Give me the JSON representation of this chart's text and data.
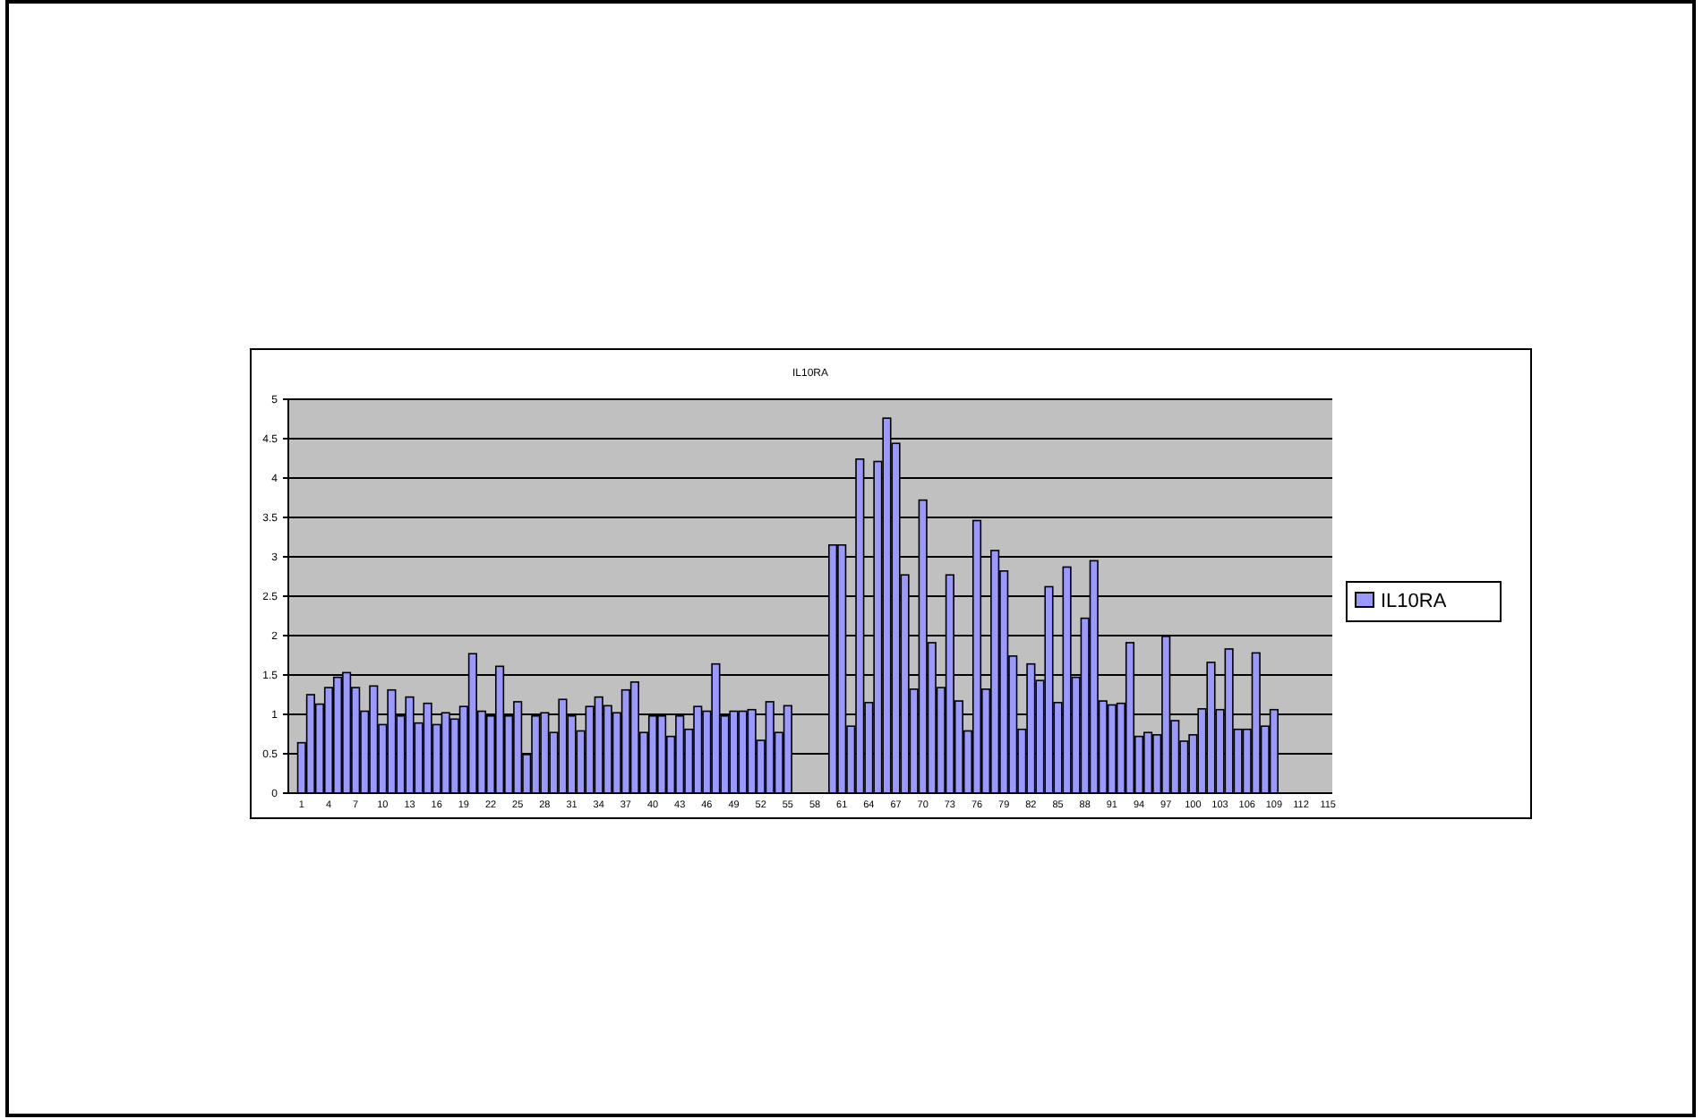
{
  "chart_data": {
    "type": "bar",
    "title": "IL10RA",
    "categories": [
      null,
      "1",
      null,
      null,
      "4",
      null,
      null,
      "7",
      null,
      null,
      "10",
      null,
      null,
      "13",
      null,
      null,
      "16",
      null,
      null,
      "19",
      null,
      null,
      "22",
      null,
      null,
      "25",
      null,
      null,
      "28",
      null,
      null,
      "31",
      null,
      null,
      "34",
      null,
      null,
      "37",
      null,
      null,
      "40",
      null,
      null,
      "43",
      null,
      null,
      "46",
      null,
      null,
      "49",
      null,
      null,
      "52",
      null,
      null,
      "55",
      null,
      null,
      "58",
      null,
      null,
      "61",
      null,
      null,
      "64",
      null,
      null,
      "67",
      null,
      null,
      "70",
      null,
      null,
      "73",
      null,
      null,
      "76",
      null,
      null,
      "79",
      null,
      null,
      "82",
      null,
      null,
      "85",
      null,
      null,
      "88",
      null,
      null,
      "91",
      null,
      null,
      "94",
      null,
      null,
      "97",
      null,
      null,
      "100",
      null,
      null,
      "103",
      null,
      null,
      "106",
      null,
      null,
      "109",
      null,
      null,
      "112",
      null,
      null,
      "115"
    ],
    "series": [
      {
        "name": "IL10RA",
        "color": "#9999ff",
        "values": [
          null,
          0.64,
          1.25,
          1.13,
          1.34,
          1.47,
          1.53,
          1.34,
          1.04,
          1.36,
          0.87,
          1.31,
          0.98,
          1.22,
          0.89,
          1.14,
          0.87,
          1.02,
          0.94,
          1.1,
          1.77,
          1.04,
          0.98,
          1.61,
          0.98,
          1.16,
          0.49,
          0.98,
          1.02,
          0.77,
          1.19,
          0.98,
          0.79,
          1.1,
          1.22,
          1.11,
          1.02,
          1.31,
          1.41,
          0.77,
          0.98,
          0.98,
          0.72,
          0.98,
          0.81,
          1.1,
          1.04,
          1.64,
          0.98,
          1.04,
          1.04,
          1.06,
          0.67,
          1.16,
          0.77,
          1.11,
          null,
          null,
          null,
          null,
          3.15,
          3.15,
          0.85,
          4.24,
          1.15,
          4.21,
          4.76,
          4.44,
          2.77,
          1.32,
          3.72,
          1.91,
          1.34,
          2.77,
          1.17,
          0.79,
          3.46,
          1.32,
          3.08,
          2.82,
          1.74,
          0.81,
          1.64,
          1.43,
          2.62,
          1.15,
          2.87,
          1.47,
          2.22,
          2.95,
          1.17,
          1.12,
          1.14,
          1.91,
          0.72,
          0.77,
          0.74,
          1.99,
          0.92,
          0.66,
          0.74,
          1.07,
          1.66,
          1.06,
          1.83,
          0.81,
          0.81,
          1.78,
          0.85,
          1.06,
          null,
          null,
          null,
          null,
          null,
          null
        ]
      }
    ],
    "ylim": [
      0,
      5
    ],
    "yticks": [
      0,
      0.5,
      1,
      1.5,
      2,
      2.5,
      3,
      3.5,
      4,
      4.5,
      5
    ],
    "grid": "y",
    "legend": "right"
  }
}
